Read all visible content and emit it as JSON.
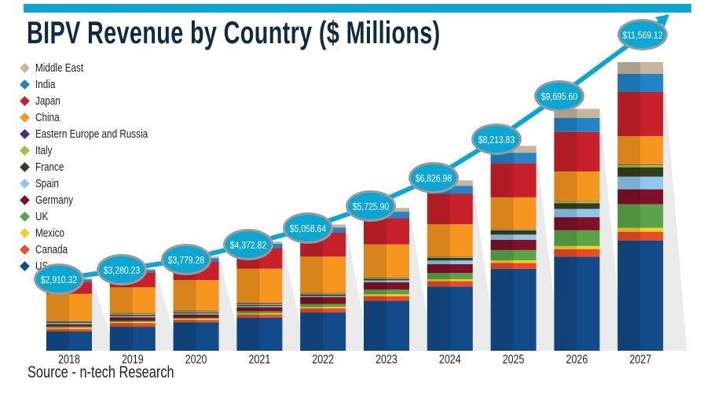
{
  "chart_data": {
    "type": "bar",
    "stacked": true,
    "title": "BIPV Revenue by Country ($ Millions)",
    "source": "Source - n-tech Research",
    "categories": [
      "2018",
      "2019",
      "2020",
      "2021",
      "2022",
      "2023",
      "2024",
      "2025",
      "2026",
      "2027"
    ],
    "totals": [
      "$2,910.32",
      "$3,280.23",
      "$3,779.28",
      "$4,372.82",
      "$5,058.64",
      "$5,725.90",
      "$6,826.98",
      "$8,213.83",
      "$9,695.60",
      "$11,569.12"
    ],
    "total_values": [
      2910.32,
      3280.23,
      3779.28,
      4372.82,
      5058.64,
      5725.9,
      6826.98,
      8213.83,
      9695.6,
      11569.12
    ],
    "ylim": [
      0,
      11569.12
    ],
    "legend_placement": "top-left",
    "grid": false,
    "series": [
      {
        "name": "US",
        "color": "#134a8a",
        "values": [
          776,
          970,
          1144,
          1331,
          1541,
          2000,
          2577,
          3280,
          3772,
          4423
        ]
      },
      {
        "name": "Canada",
        "color": "#ef4a24",
        "values": [
          97,
          139,
          88,
          125,
          158,
          187,
          215,
          241,
          297,
          347
        ]
      },
      {
        "name": "Mexico",
        "color": "#f6d21f",
        "values": [
          48,
          46,
          44,
          42,
          59,
          75,
          72,
          103,
          132,
          158
        ]
      },
      {
        "name": "UK",
        "color": "#58a447",
        "values": [
          48,
          46,
          44,
          83,
          119,
          187,
          251,
          413,
          627,
          946
        ]
      },
      {
        "name": "Germany",
        "color": "#7f1028",
        "values": [
          97,
          139,
          132,
          166,
          277,
          299,
          359,
          413,
          528,
          599
        ]
      },
      {
        "name": "Spain",
        "color": "#8ec8ef",
        "values": [
          48,
          46,
          44,
          42,
          40,
          75,
          144,
          206,
          330,
          505
        ]
      },
      {
        "name": "France",
        "color": "#333f1c",
        "values": [
          48,
          46,
          44,
          42,
          59,
          56,
          108,
          172,
          231,
          378
        ]
      },
      {
        "name": "Italy",
        "color": "#9cc53a",
        "values": [
          24,
          46,
          44,
          42,
          40,
          37,
          36,
          34,
          66,
          95
        ]
      },
      {
        "name": "Eastern Europe and Russia",
        "color": "#4b2b7f",
        "values": [
          15,
          23,
          22,
          42,
          20,
          19,
          18,
          17,
          17,
          20
        ]
      },
      {
        "name": "China",
        "color": "#f7961f",
        "values": [
          1079,
          1041,
          1227,
          1377,
          1462,
          1332,
          1288,
          1271,
          1188,
          1135
        ]
      },
      {
        "name": "Japan",
        "color": "#c8202a",
        "values": [
          485,
          600,
          748,
          832,
          967,
          1047,
          1221,
          1376,
          1584,
          1765
        ]
      },
      {
        "name": "India",
        "color": "#2283c8",
        "values": [
          97,
          92,
          132,
          166,
          198,
          262,
          323,
          413,
          561,
          725
        ]
      },
      {
        "name": "Middle East",
        "color": "#c5b69c",
        "values": [
          48,
          46,
          66,
          83,
          119,
          150,
          215,
          275,
          363,
          473
        ]
      }
    ],
    "colors": {
      "accent": "#0ba6d3",
      "title": "#0e2a44",
      "line": "#0ba6d3"
    }
  }
}
